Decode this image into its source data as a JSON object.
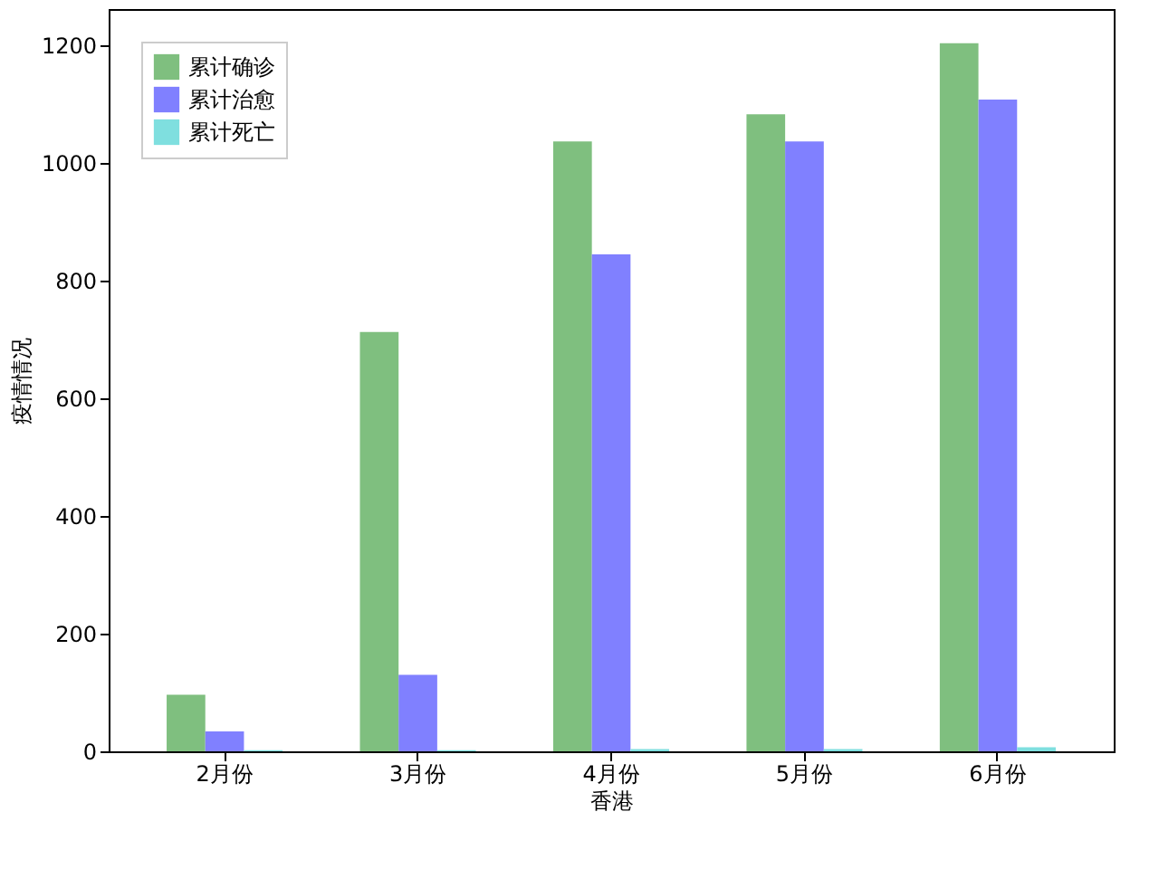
{
  "chart_data": {
    "type": "bar",
    "xlabel": "香港",
    "ylabel": "疫情情况",
    "categories": [
      "2月份",
      "3月份",
      "4月份",
      "5月份",
      "6月份"
    ],
    "series": [
      {
        "name": "累计确诊",
        "color": "#7fbf7f",
        "values": [
          96,
          713,
          1037,
          1083,
          1204
        ]
      },
      {
        "name": "累计治愈",
        "color": "#8080ff",
        "values": [
          34,
          130,
          845,
          1037,
          1108
        ]
      },
      {
        "name": "累计死亡",
        "color": "#7fdfdf",
        "values": [
          2,
          2,
          4,
          4,
          7
        ]
      }
    ],
    "ylim": [
      0,
      1262
    ],
    "yticks": [
      0,
      200,
      400,
      600,
      800,
      1000,
      1200
    ],
    "grid": false,
    "legend": "top left"
  }
}
